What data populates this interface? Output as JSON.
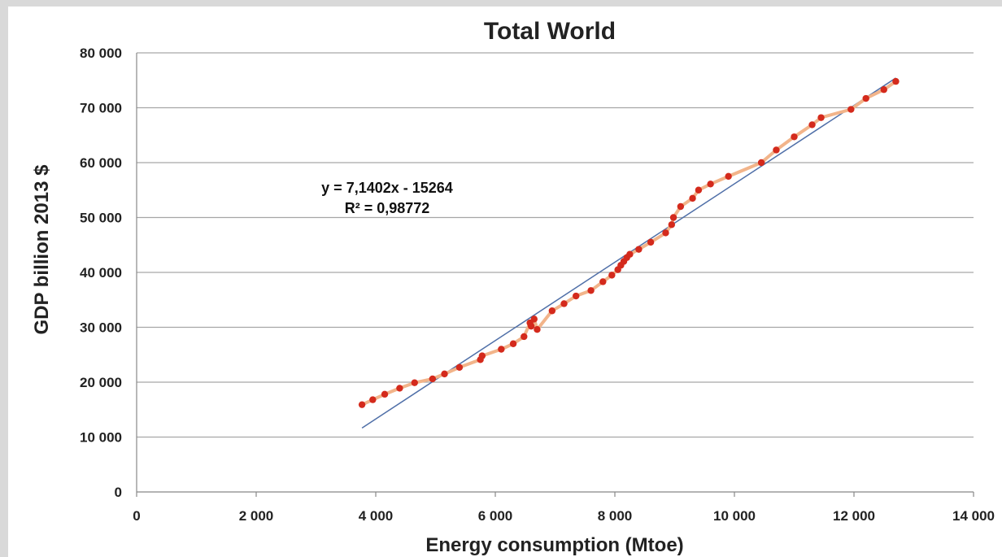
{
  "chart_data": {
    "type": "scatter",
    "title": "Total World",
    "xlabel": "Energy consumption (Mtoe)",
    "ylabel": "GDP billion 2013 $",
    "xlim": [
      0,
      14000
    ],
    "ylim": [
      0,
      80000
    ],
    "xticks": [
      0,
      2000,
      4000,
      6000,
      8000,
      10000,
      12000,
      14000
    ],
    "yticks": [
      0,
      10000,
      20000,
      30000,
      40000,
      50000,
      60000,
      70000,
      80000
    ],
    "xtick_labels": [
      "0",
      "2 000",
      "4 000",
      "6 000",
      "8 000",
      "10 000",
      "12 000",
      "14 000"
    ],
    "ytick_labels": [
      "0",
      "10 000",
      "20 000",
      "30 000",
      "40 000",
      "50 000",
      "60 000",
      "70 000",
      "80 000"
    ],
    "grid": "horizontal",
    "series": [
      {
        "color": "#d42a1c",
        "line_color": "#f2b48a",
        "points": [
          [
            3770,
            15900
          ],
          [
            3950,
            16800
          ],
          [
            4150,
            17800
          ],
          [
            4400,
            18900
          ],
          [
            4650,
            19900
          ],
          [
            4950,
            20600
          ],
          [
            5150,
            21500
          ],
          [
            5400,
            22700
          ],
          [
            5750,
            24100
          ],
          [
            5780,
            24800
          ],
          [
            6100,
            26000
          ],
          [
            6300,
            27000
          ],
          [
            6480,
            28300
          ],
          [
            6580,
            30800
          ],
          [
            6600,
            30200
          ],
          [
            6650,
            31500
          ],
          [
            6700,
            29600
          ],
          [
            6950,
            33000
          ],
          [
            7150,
            34300
          ],
          [
            7350,
            35700
          ],
          [
            7600,
            36700
          ],
          [
            7800,
            38300
          ],
          [
            7950,
            39500
          ],
          [
            8050,
            40500
          ],
          [
            8100,
            41300
          ],
          [
            8150,
            42000
          ],
          [
            8200,
            42700
          ],
          [
            8250,
            43300
          ],
          [
            8400,
            44200
          ],
          [
            8600,
            45500
          ],
          [
            8850,
            47200
          ],
          [
            8950,
            48700
          ],
          [
            8980,
            50000
          ],
          [
            9100,
            52000
          ],
          [
            9300,
            53500
          ],
          [
            9400,
            55000
          ],
          [
            9600,
            56100
          ],
          [
            9900,
            57500
          ],
          [
            10450,
            60000
          ],
          [
            10700,
            62300
          ],
          [
            11000,
            64700
          ],
          [
            11300,
            66900
          ],
          [
            11450,
            68200
          ],
          [
            11950,
            69700
          ],
          [
            12200,
            71700
          ],
          [
            12500,
            73300
          ],
          [
            12700,
            74800
          ]
        ]
      }
    ],
    "trendline": {
      "slope": 7.1402,
      "intercept": -15264,
      "x_range": [
        3770,
        12700
      ],
      "color": "#4f6fa8",
      "equation": "y = 7,1402x - 15264",
      "r2": "R² = 0,98772"
    }
  }
}
